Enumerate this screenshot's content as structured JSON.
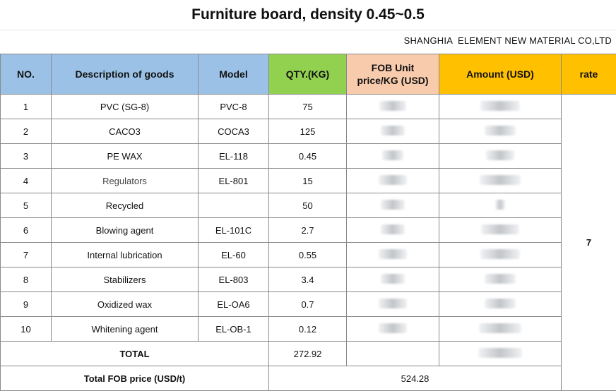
{
  "title": "Furniture board, density 0.45~0.5",
  "company": "SHANGHIA  ELEMENT NEW MATERIAL CO,LTD",
  "headers": {
    "no": "NO.",
    "description": "Description of goods",
    "model": "Model",
    "qty": "QTY.(KG)",
    "fob_unit": "FOB Unit price/KG (USD)",
    "amount": "Amount (USD)",
    "rate": "rate"
  },
  "rows": [
    {
      "no": "1",
      "description": "PVC (SG-8)",
      "model": "PVC-8",
      "qty": "75"
    },
    {
      "no": "2",
      "description": "CACO3",
      "model": "COCA3",
      "qty": "125"
    },
    {
      "no": "3",
      "description": "PE WAX",
      "model": "EL-118",
      "qty": "0.45"
    },
    {
      "no": "4",
      "description": "Regulators",
      "model": "EL-801",
      "qty": "15"
    },
    {
      "no": "5",
      "description": "Recycled",
      "model": "",
      "qty": "50"
    },
    {
      "no": "6",
      "description": "Blowing agent",
      "model": "EL-101C",
      "qty": "2.7"
    },
    {
      "no": "7",
      "description": "Internal lubrication",
      "model": "EL-60",
      "qty": "0.55"
    },
    {
      "no": "8",
      "description": "Stabilizers",
      "model": "EL-803",
      "qty": "3.4"
    },
    {
      "no": "9",
      "description": "Oxidized wax",
      "model": "EL-OA6",
      "qty": "0.7"
    },
    {
      "no": "10",
      "description": "Whitening agent",
      "model": "EL-OB-1",
      "qty": "0.12"
    }
  ],
  "rate_value": "7",
  "total_label": "TOTAL",
  "total_qty": "272.92",
  "total_fob_label": "Total FOB price (USD/t)",
  "total_fob_value": "524.28"
}
